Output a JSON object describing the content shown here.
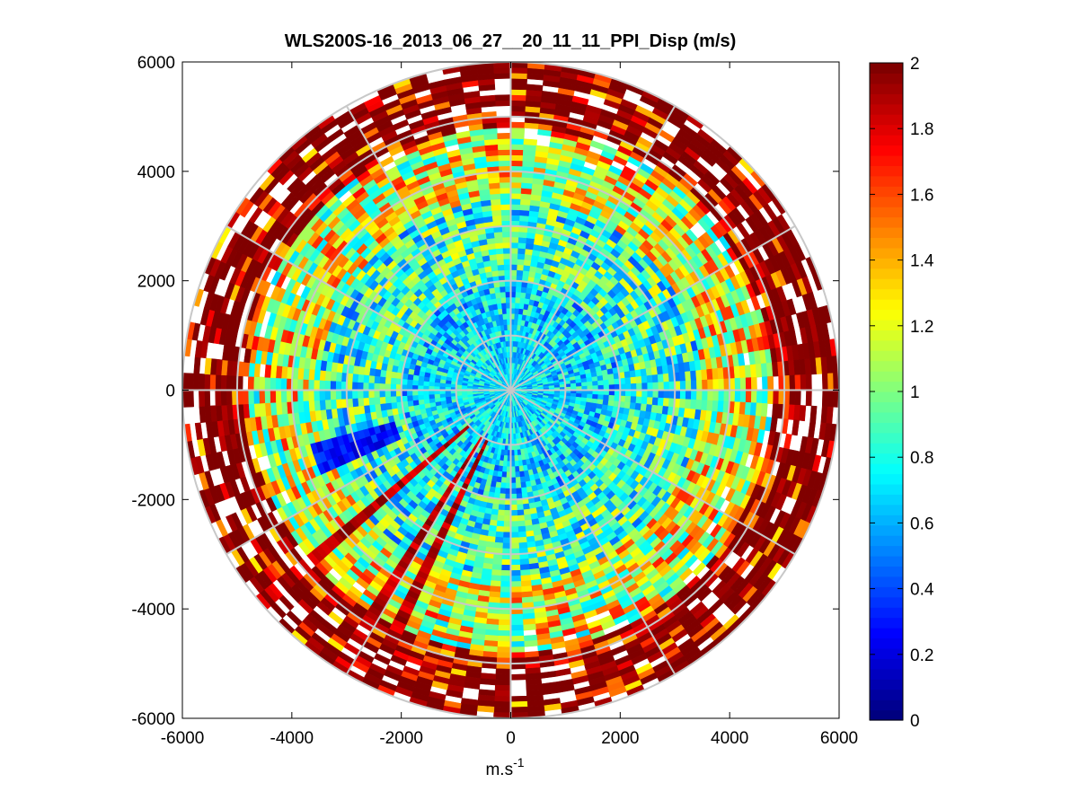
{
  "chart_data": {
    "type": "heatmap",
    "subtype": "polar-ppi",
    "title": "WLS200S-16_2013_06_27__20_11_11_PPI_Disp (m/s)",
    "xlabel_base": "m.s",
    "xlabel_sup": "-1",
    "ylabel": "",
    "xlim": [
      -6000,
      6000
    ],
    "ylim": [
      -6000,
      6000
    ],
    "x_ticks": [
      -6000,
      -4000,
      -2000,
      0,
      2000,
      4000,
      6000
    ],
    "y_ticks": [
      -6000,
      -4000,
      -2000,
      0,
      2000,
      4000,
      6000
    ],
    "x_tick_labels": [
      "-6000",
      "-4000",
      "-2000",
      "0",
      "2000",
      "4000",
      "6000"
    ],
    "y_tick_labels": [
      "-6000",
      "-4000",
      "-2000",
      "0",
      "2000",
      "4000",
      "6000"
    ],
    "range_rings": [
      1000,
      2000,
      3000,
      4000,
      5000,
      6000
    ],
    "spoke_angles_deg": [
      0,
      30,
      60,
      90,
      120,
      150,
      180,
      210,
      240,
      270,
      300,
      330
    ],
    "max_range": 6000,
    "colorbar": {
      "min": 0,
      "max": 2,
      "colormap": "jet",
      "ticks": [
        0,
        0.2,
        0.4,
        0.6,
        0.8,
        1,
        1.2,
        1.4,
        1.6,
        1.8,
        2
      ],
      "tick_labels": [
        "0",
        "0.2",
        "0.4",
        "0.6",
        "0.8",
        "1",
        "1.2",
        "1.4",
        "1.6",
        "1.8",
        "2"
      ]
    },
    "field_summary": {
      "range_bands": [
        {
          "r_min": 0,
          "r_max": 2000,
          "typical_value": 0.7
        },
        {
          "r_min": 2000,
          "r_max": 3500,
          "typical_value": 0.85
        },
        {
          "r_min": 3500,
          "r_max": 4800,
          "typical_value": 1.2
        },
        {
          "r_min": 4800,
          "r_max": 6000,
          "typical_value": 1.9
        }
      ],
      "low_value_sector": {
        "azimuth_deg": [
          248,
          253
        ],
        "value": 0.15
      },
      "high_value_streaks_azimuth_deg": [
        205,
        212,
        230
      ],
      "no_data_azimuths_deg": [
        0,
        270
      ]
    }
  }
}
